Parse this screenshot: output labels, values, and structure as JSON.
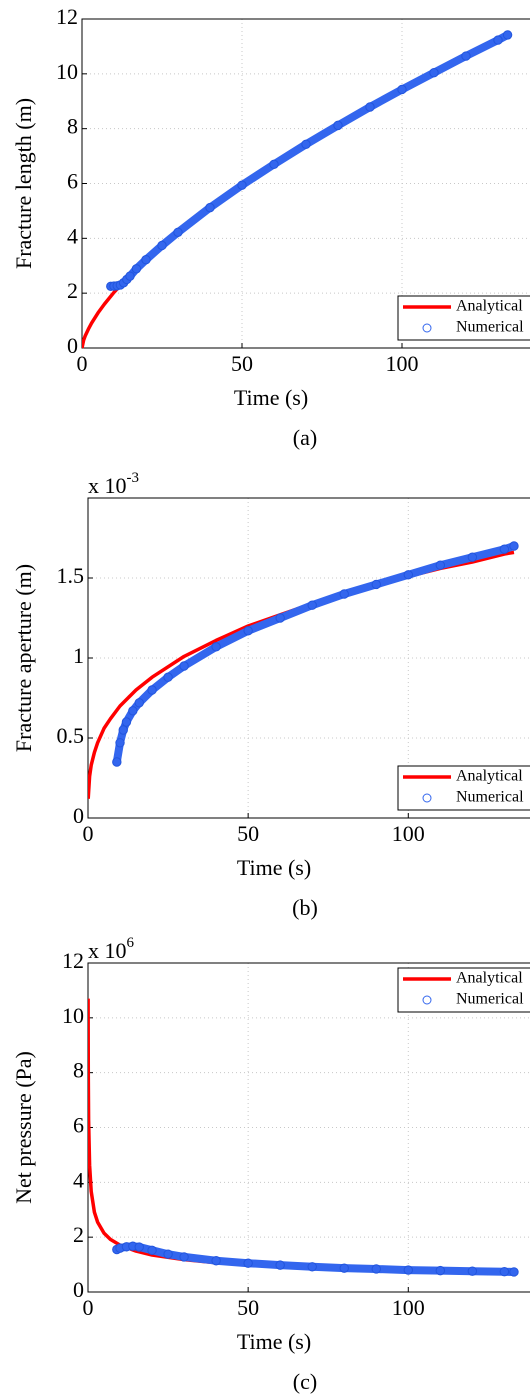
{
  "chart_data": [
    {
      "type": "line",
      "caption": "(a)",
      "x_label": "Time (s)",
      "y_label": "Fracture length (m)",
      "xlim": [
        0,
        140
      ],
      "xticks": [
        0,
        50,
        100
      ],
      "ylim": [
        0,
        12
      ],
      "yticks": [
        0,
        2,
        4,
        6,
        8,
        10,
        12
      ],
      "grid": true,
      "legend": "lower right",
      "series": [
        {
          "name": "Analytical",
          "color": "#ff0000",
          "marker": "line",
          "x": [
            0,
            0.5,
            1,
            2,
            3,
            5,
            7,
            10,
            15,
            20,
            30,
            40,
            50,
            60,
            70,
            80,
            90,
            100,
            110,
            120,
            130,
            133
          ],
          "values": [
            0,
            0.28,
            0.44,
            0.69,
            0.91,
            1.28,
            1.6,
            2.03,
            2.66,
            3.22,
            4.22,
            5.12,
            5.94,
            6.7,
            7.43,
            8.12,
            8.79,
            9.43,
            10.04,
            10.65,
            11.23,
            11.4
          ]
        },
        {
          "name": "Numerical",
          "color": "#3366ee",
          "marker": "circle",
          "x": [
            9,
            10,
            11,
            12,
            13,
            14,
            15,
            17,
            20,
            25,
            30,
            40,
            50,
            60,
            70,
            80,
            90,
            100,
            110,
            120,
            130,
            133
          ],
          "values": [
            2.25,
            2.26,
            2.27,
            2.3,
            2.38,
            2.5,
            2.62,
            2.89,
            3.22,
            3.74,
            4.22,
            5.12,
            5.94,
            6.7,
            7.43,
            8.12,
            8.79,
            9.43,
            10.04,
            10.65,
            11.23,
            11.42
          ]
        }
      ]
    },
    {
      "type": "line",
      "caption": "(b)",
      "x_label": "Time (s)",
      "y_label": "Fracture aperture (m)",
      "y_multiplier": {
        "base": "x 10",
        "exponent": "-3"
      },
      "xlim": [
        0,
        138
      ],
      "xticks": [
        0,
        50,
        100
      ],
      "ylim": [
        0,
        2
      ],
      "yticks": [
        0,
        0.5,
        1,
        1.5
      ],
      "grid": true,
      "legend": "lower right",
      "series": [
        {
          "name": "Analytical",
          "color": "#ff0000",
          "marker": "line",
          "x": [
            0.05,
            0.5,
            1,
            2,
            3,
            5,
            7,
            10,
            15,
            20,
            30,
            40,
            50,
            60,
            70,
            80,
            90,
            100,
            110,
            120,
            130,
            133
          ],
          "values": [
            0.12,
            0.26,
            0.33,
            0.41,
            0.47,
            0.56,
            0.62,
            0.7,
            0.8,
            0.88,
            1.01,
            1.11,
            1.2,
            1.27,
            1.34,
            1.4,
            1.46,
            1.51,
            1.56,
            1.6,
            1.65,
            1.66
          ]
        },
        {
          "name": "Numerical",
          "color": "#3366ee",
          "marker": "circle",
          "x": [
            9,
            10,
            11,
            12,
            14,
            16,
            20,
            25,
            30,
            40,
            50,
            60,
            70,
            80,
            90,
            100,
            110,
            120,
            130,
            133
          ],
          "values": [
            0.35,
            0.47,
            0.55,
            0.6,
            0.67,
            0.72,
            0.8,
            0.88,
            0.95,
            1.07,
            1.17,
            1.25,
            1.33,
            1.4,
            1.46,
            1.52,
            1.58,
            1.63,
            1.68,
            1.7
          ]
        }
      ]
    },
    {
      "type": "line",
      "caption": "(c)",
      "x_label": "Time (s)",
      "y_label": "Net pressure (Pa)",
      "y_multiplier": {
        "base": "x 10",
        "exponent": "6"
      },
      "xlim": [
        0,
        138
      ],
      "xticks": [
        0,
        50,
        100
      ],
      "ylim": [
        0,
        12
      ],
      "yticks": [
        0,
        2,
        4,
        6,
        8,
        10,
        12
      ],
      "grid": true,
      "legend": "upper right",
      "series": [
        {
          "name": "Analytical",
          "color": "#ff0000",
          "marker": "line",
          "x": [
            0.04,
            0.1,
            0.2,
            0.5,
            1,
            2,
            3,
            5,
            7,
            10,
            15,
            20,
            30,
            40,
            50,
            60,
            70,
            80,
            90,
            100,
            110,
            120,
            130,
            133
          ],
          "values": [
            10.7,
            7.92,
            6.28,
            4.63,
            3.67,
            2.91,
            2.55,
            2.15,
            1.92,
            1.71,
            1.49,
            1.35,
            1.18,
            1.07,
            1.0,
            0.94,
            0.89,
            0.85,
            0.82,
            0.79,
            0.77,
            0.75,
            0.73,
            0.72
          ]
        },
        {
          "name": "Numerical",
          "color": "#3366ee",
          "marker": "circle",
          "x": [
            9,
            10,
            12,
            14,
            16,
            20,
            25,
            30,
            40,
            50,
            60,
            70,
            80,
            90,
            100,
            110,
            120,
            130,
            133
          ],
          "values": [
            1.55,
            1.6,
            1.65,
            1.67,
            1.64,
            1.52,
            1.38,
            1.28,
            1.14,
            1.05,
            0.98,
            0.92,
            0.87,
            0.84,
            0.8,
            0.78,
            0.76,
            0.74,
            0.73
          ]
        }
      ]
    }
  ]
}
